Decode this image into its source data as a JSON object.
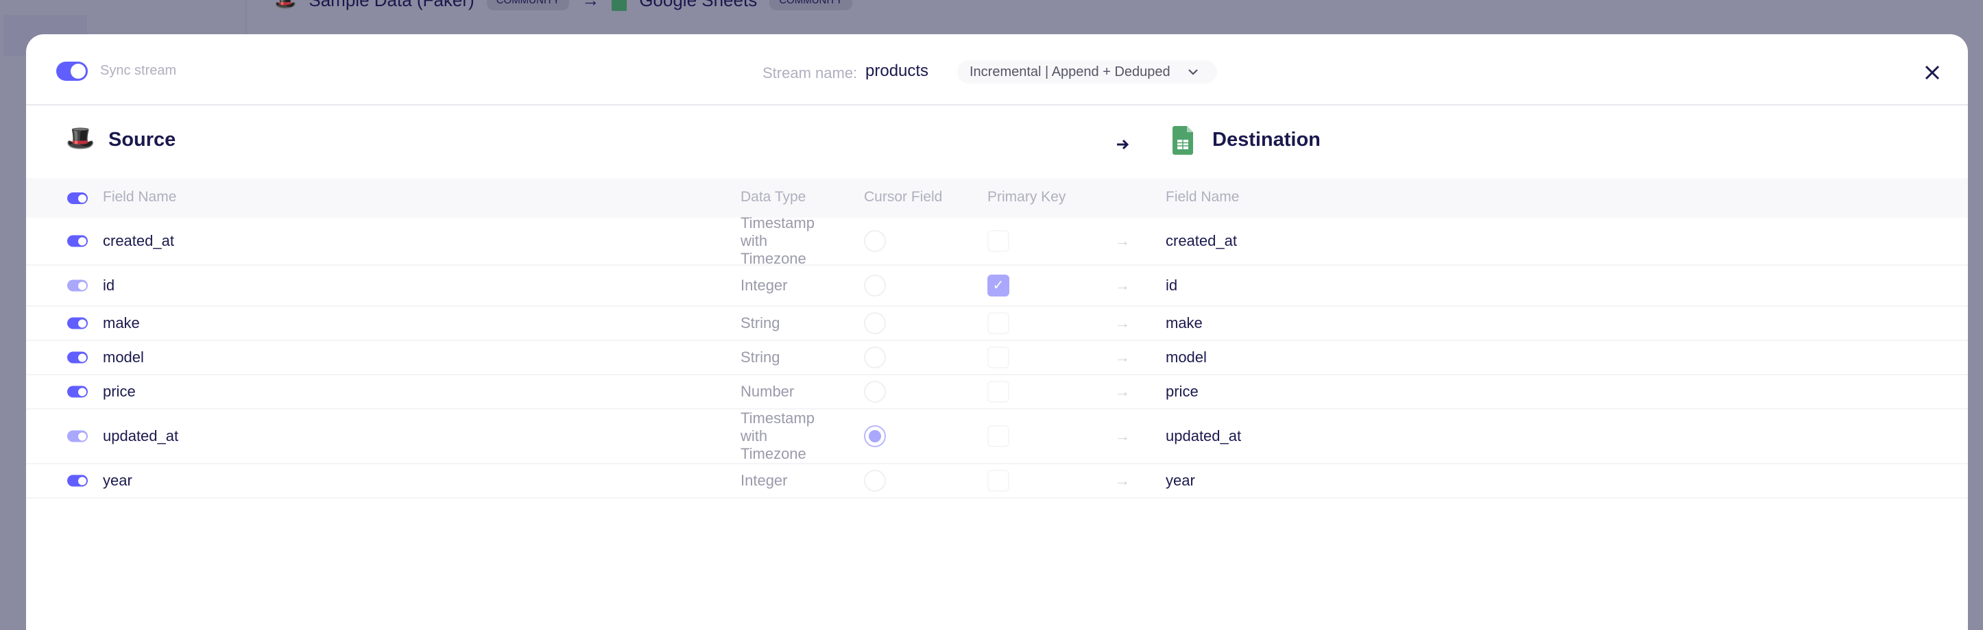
{
  "background": {
    "source_name": "Sample Data (Faker)",
    "source_badge": "COMMUNITY",
    "dest_name": "Google Sheets",
    "dest_badge": "COMMUNITY"
  },
  "header": {
    "sync_label": "Sync stream",
    "sync_enabled": true,
    "stream_name_label": "Stream name:",
    "stream_name": "products",
    "sync_mode": "Incremental | Append + Deduped",
    "close_icon": "close-icon"
  },
  "source": {
    "title": "Source"
  },
  "destination": {
    "title": "Destination"
  },
  "columns": {
    "field_name": "Field Name",
    "data_type": "Data Type",
    "cursor_field": "Cursor Field",
    "primary_key": "Primary Key",
    "dest_field_name": "Field Name"
  },
  "rows": [
    {
      "field": "created_at",
      "type": "Timestamp with Timezone",
      "cursor": false,
      "pk": false,
      "dest": "created_at",
      "enabled_locked": false
    },
    {
      "field": "id",
      "type": "Integer",
      "cursor": false,
      "pk": true,
      "dest": "id",
      "enabled_locked": true
    },
    {
      "field": "make",
      "type": "String",
      "cursor": false,
      "pk": false,
      "dest": "make",
      "enabled_locked": false
    },
    {
      "field": "model",
      "type": "String",
      "cursor": false,
      "pk": false,
      "dest": "model",
      "enabled_locked": false
    },
    {
      "field": "price",
      "type": "Number",
      "cursor": false,
      "pk": false,
      "dest": "price",
      "enabled_locked": false
    },
    {
      "field": "updated_at",
      "type": "Timestamp with Timezone",
      "cursor": true,
      "pk": false,
      "dest": "updated_at",
      "enabled_locked": true
    },
    {
      "field": "year",
      "type": "Integer",
      "cursor": false,
      "pk": false,
      "dest": "year",
      "enabled_locked": false
    }
  ],
  "colors": {
    "accent": "#615eff",
    "accent_light": "#aaa8fc",
    "text": "#1a194d",
    "muted": "#afafbf"
  }
}
